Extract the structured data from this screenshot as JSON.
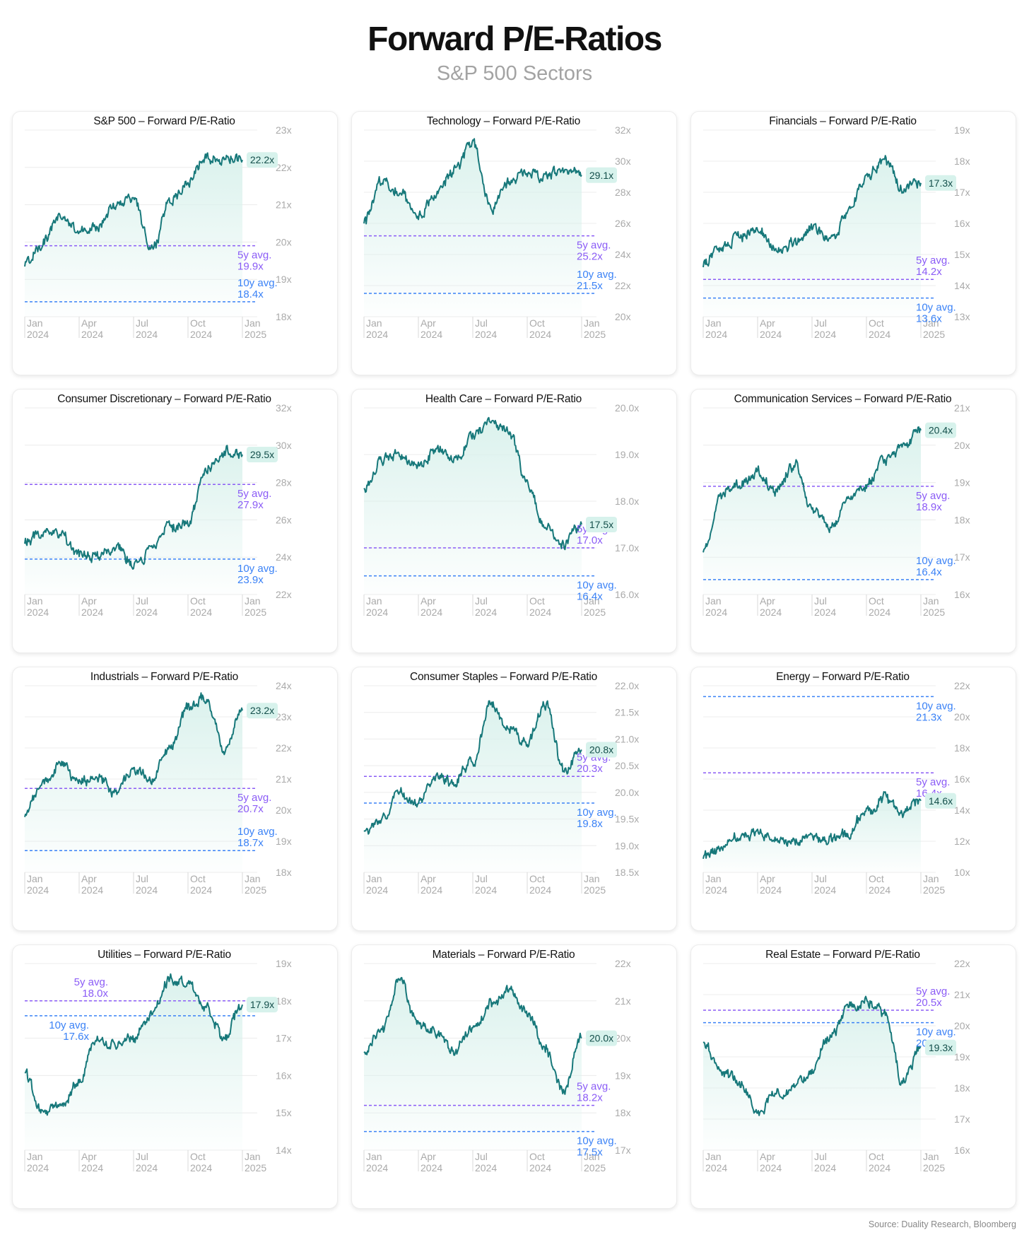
{
  "page": {
    "title": "Forward P/E-Ratios",
    "subtitle": "S&P 500 Sectors",
    "source": "Source: Duality Research, Bloomberg"
  },
  "colors": {
    "line": "#17787a",
    "fill": "#d9f1ec",
    "label_bg": "#d7f2ec",
    "avg5": "#8b5cf6",
    "avg10": "#3b82f6",
    "axis_text": "#aaaaaa",
    "grid": "#ececec"
  },
  "x_tick_labels": [
    [
      "Jan",
      "2024"
    ],
    [
      "Apr",
      "2024"
    ],
    [
      "Jul",
      "2024"
    ],
    [
      "Oct",
      "2024"
    ],
    [
      "Jan",
      "2025"
    ]
  ],
  "chart_data": [
    {
      "type": "line",
      "title": "S&P 500 – Forward P/E-Ratio",
      "x": [
        "Jan 2024",
        "Feb 2024",
        "Mar 2024",
        "Apr 2024",
        "May 2024",
        "Jun 2024",
        "Jul 2024",
        "Aug 2024",
        "Sep 2024",
        "Oct 2024",
        "Nov 2024",
        "Dec 2024",
        "Jan 2025"
      ],
      "series": [
        {
          "values": [
            19.4,
            20.0,
            20.7,
            20.3,
            20.4,
            21.0,
            21.2,
            19.8,
            21.1,
            21.6,
            22.3,
            22.2,
            22.2
          ]
        }
      ],
      "last_label": "22.2x",
      "avg5": {
        "label": "5y avg.",
        "value": 19.9,
        "value_label": "19.9x"
      },
      "avg10": {
        "label": "10y avg.",
        "value": 18.4,
        "value_label": "18.4x"
      },
      "y_ticks": [
        "23x",
        "22x",
        "21x",
        "20x",
        "19x",
        "18x"
      ],
      "ylim": [
        18,
        23
      ]
    },
    {
      "type": "line",
      "title": "Technology – Forward P/E-Ratio",
      "x": [
        "Jan 2024",
        "Feb 2024",
        "Mar 2024",
        "Apr 2024",
        "May 2024",
        "Jun 2024",
        "Jul 2024",
        "Aug 2024",
        "Sep 2024",
        "Oct 2024",
        "Nov 2024",
        "Dec 2024",
        "Jan 2025"
      ],
      "series": [
        {
          "values": [
            26.0,
            28.8,
            28.0,
            26.5,
            27.8,
            29.5,
            31.2,
            27.0,
            28.6,
            29.3,
            29.0,
            29.5,
            29.1
          ]
        }
      ],
      "last_label": "29.1x",
      "avg5": {
        "label": "5y avg.",
        "value": 25.2,
        "value_label": "25.2x"
      },
      "avg10": {
        "label": "10y avg.",
        "value": 21.5,
        "value_label": "21.5x"
      },
      "y_ticks": [
        "32x",
        "30x",
        "28x",
        "26x",
        "24x",
        "22x",
        "20x"
      ],
      "ylim": [
        20,
        32
      ]
    },
    {
      "type": "line",
      "title": "Financials – Forward P/E-Ratio",
      "x": [
        "Jan 2024",
        "Feb 2024",
        "Mar 2024",
        "Apr 2024",
        "May 2024",
        "Jun 2024",
        "Jul 2024",
        "Aug 2024",
        "Sep 2024",
        "Oct 2024",
        "Nov 2024",
        "Dec 2024",
        "Jan 2025"
      ],
      "series": [
        {
          "values": [
            14.7,
            15.2,
            15.5,
            15.8,
            15.2,
            15.4,
            15.8,
            15.5,
            16.4,
            17.5,
            18.0,
            17.1,
            17.3
          ]
        }
      ],
      "last_label": "17.3x",
      "avg5": {
        "label": "5y avg.",
        "value": 14.2,
        "value_label": "14.2x"
      },
      "avg10": {
        "label": "10y avg.",
        "value": 13.6,
        "value_label": "13.6x"
      },
      "y_ticks": [
        "19x",
        "18x",
        "17x",
        "16x",
        "15x",
        "14x",
        "13x"
      ],
      "ylim": [
        13,
        19
      ]
    },
    {
      "type": "line",
      "title": "Consumer Discretionary – Forward P/E-Ratio",
      "x": [
        "Jan 2024",
        "Feb 2024",
        "Mar 2024",
        "Apr 2024",
        "May 2024",
        "Jun 2024",
        "Jul 2024",
        "Aug 2024",
        "Sep 2024",
        "Oct 2024",
        "Nov 2024",
        "Dec 2024",
        "Jan 2025"
      ],
      "series": [
        {
          "values": [
            24.8,
            25.3,
            25.2,
            24.2,
            24.0,
            24.6,
            23.5,
            24.4,
            25.6,
            25.8,
            28.8,
            29.6,
            29.5
          ]
        }
      ],
      "last_label": "29.5x",
      "avg5": {
        "label": "5y avg.",
        "value": 27.9,
        "value_label": "27.9x"
      },
      "avg10": {
        "label": "10y avg.",
        "value": 23.9,
        "value_label": "23.9x"
      },
      "y_ticks": [
        "32x",
        "30x",
        "28x",
        "26x",
        "24x",
        "22x"
      ],
      "ylim": [
        22,
        32
      ]
    },
    {
      "type": "line",
      "title": "Health Care – Forward P/E-Ratio",
      "x": [
        "Jan 2024",
        "Feb 2024",
        "Mar 2024",
        "Apr 2024",
        "May 2024",
        "Jun 2024",
        "Jul 2024",
        "Aug 2024",
        "Sep 2024",
        "Oct 2024",
        "Nov 2024",
        "Dec 2024",
        "Jan 2025"
      ],
      "series": [
        {
          "values": [
            18.2,
            18.9,
            19.0,
            18.7,
            19.1,
            18.9,
            19.4,
            19.7,
            19.5,
            18.4,
            17.4,
            17.1,
            17.5
          ]
        }
      ],
      "last_label": "17.5x",
      "avg5": {
        "label": "5y avg.",
        "value": 17.0,
        "value_label": "17.0x"
      },
      "avg10": {
        "label": "10y avg.",
        "value": 16.4,
        "value_label": "16.4x"
      },
      "y_ticks": [
        "20.0x",
        "19.0x",
        "18.0x",
        "17.0x",
        "16.0x"
      ],
      "ylim": [
        16,
        20
      ]
    },
    {
      "type": "line",
      "title": "Communication Services – Forward P/E-Ratio",
      "x": [
        "Jan 2024",
        "Feb 2024",
        "Mar 2024",
        "Apr 2024",
        "May 2024",
        "Jun 2024",
        "Jul 2024",
        "Aug 2024",
        "Sep 2024",
        "Oct 2024",
        "Nov 2024",
        "Dec 2024",
        "Jan 2025"
      ],
      "series": [
        {
          "values": [
            17.2,
            18.7,
            18.9,
            19.3,
            18.8,
            19.5,
            18.3,
            17.8,
            18.5,
            18.9,
            19.6,
            20.0,
            20.4
          ]
        }
      ],
      "last_label": "20.4x",
      "avg5": {
        "label": "5y avg.",
        "value": 18.9,
        "value_label": "18.9x"
      },
      "avg10": {
        "label": "10y avg.",
        "value": 16.4,
        "value_label": "16.4x"
      },
      "y_ticks": [
        "21x",
        "20x",
        "19x",
        "18x",
        "17x",
        "16x"
      ],
      "ylim": [
        16,
        21
      ]
    },
    {
      "type": "line",
      "title": "Industrials – Forward P/E-Ratio",
      "x": [
        "Jan 2024",
        "Feb 2024",
        "Mar 2024",
        "Apr 2024",
        "May 2024",
        "Jun 2024",
        "Jul 2024",
        "Aug 2024",
        "Sep 2024",
        "Oct 2024",
        "Nov 2024",
        "Dec 2024",
        "Jan 2025"
      ],
      "series": [
        {
          "values": [
            19.8,
            20.9,
            21.5,
            20.9,
            21.1,
            20.6,
            21.3,
            21.0,
            22.0,
            23.3,
            23.6,
            21.9,
            23.2
          ]
        }
      ],
      "last_label": "23.2x",
      "avg5": {
        "label": "5y avg.",
        "value": 20.7,
        "value_label": "20.7x"
      },
      "avg10": {
        "label": "10y avg.",
        "value": 18.7,
        "value_label": "18.7x"
      },
      "y_ticks": [
        "24x",
        "23x",
        "22x",
        "21x",
        "20x",
        "19x",
        "18x"
      ],
      "ylim": [
        18,
        24
      ]
    },
    {
      "type": "line",
      "title": "Consumer Staples – Forward P/E-Ratio",
      "x": [
        "Jan 2024",
        "Feb 2024",
        "Mar 2024",
        "Apr 2024",
        "May 2024",
        "Jun 2024",
        "Jul 2024",
        "Aug 2024",
        "Sep 2024",
        "Oct 2024",
        "Nov 2024",
        "Dec 2024",
        "Jan 2025"
      ],
      "series": [
        {
          "values": [
            19.2,
            19.5,
            20.0,
            19.8,
            20.3,
            20.2,
            20.6,
            21.7,
            21.2,
            20.9,
            21.7,
            20.4,
            20.8
          ]
        }
      ],
      "last_label": "20.8x",
      "avg5": {
        "label": "5y avg.",
        "value": 20.3,
        "value_label": "20.3x"
      },
      "avg10": {
        "label": "10y avg.",
        "value": 19.8,
        "value_label": "19.8x"
      },
      "y_ticks": [
        "22.0x",
        "21.5x",
        "21.0x",
        "20.5x",
        "20.0x",
        "19.5x",
        "19.0x",
        "18.5x"
      ],
      "ylim": [
        18.5,
        22
      ]
    },
    {
      "type": "line",
      "title": "Energy – Forward P/E-Ratio",
      "x": [
        "Jan 2024",
        "Feb 2024",
        "Mar 2024",
        "Apr 2024",
        "May 2024",
        "Jun 2024",
        "Jul 2024",
        "Aug 2024",
        "Sep 2024",
        "Oct 2024",
        "Nov 2024",
        "Dec 2024",
        "Jan 2025"
      ],
      "series": [
        {
          "values": [
            11.0,
            11.6,
            12.3,
            12.6,
            12.1,
            12.0,
            12.3,
            12.1,
            12.5,
            13.9,
            14.8,
            13.8,
            14.6
          ]
        }
      ],
      "last_label": "14.6x",
      "avg5": {
        "label": "5y avg.",
        "value": 16.4,
        "value_label": "16.4x"
      },
      "avg10": {
        "label": "10y avg.",
        "value": 21.3,
        "value_label": "21.3x"
      },
      "y_ticks": [
        "22x",
        "20x",
        "18x",
        "16x",
        "14x",
        "12x",
        "10x"
      ],
      "ylim": [
        10,
        22
      ]
    },
    {
      "type": "line",
      "title": "Utilities – Forward P/E-Ratio",
      "x": [
        "Jan 2024",
        "Feb 2024",
        "Mar 2024",
        "Apr 2024",
        "May 2024",
        "Jun 2024",
        "Jul 2024",
        "Aug 2024",
        "Sep 2024",
        "Oct 2024",
        "Nov 2024",
        "Dec 2024",
        "Jan 2025"
      ],
      "series": [
        {
          "values": [
            16.0,
            15.0,
            15.2,
            15.8,
            17.1,
            16.8,
            17.0,
            17.6,
            18.6,
            18.5,
            17.8,
            17.0,
            17.9
          ]
        }
      ],
      "last_label": "17.9x",
      "avg5": {
        "label": "5y avg.",
        "value": 18.0,
        "value_label": "18.0x"
      },
      "avg10": {
        "label": "10y avg.",
        "value": 17.6,
        "value_label": "17.6x"
      },
      "y_ticks": [
        "19x",
        "18x",
        "17x",
        "16x",
        "15x",
        "14x"
      ],
      "ylim": [
        14,
        19
      ]
    },
    {
      "type": "line",
      "title": "Materials – Forward P/E-Ratio",
      "x": [
        "Jan 2024",
        "Feb 2024",
        "Mar 2024",
        "Apr 2024",
        "May 2024",
        "Jun 2024",
        "Jul 2024",
        "Aug 2024",
        "Sep 2024",
        "Oct 2024",
        "Nov 2024",
        "Dec 2024",
        "Jan 2025"
      ],
      "series": [
        {
          "values": [
            19.7,
            20.2,
            21.6,
            20.4,
            20.1,
            19.7,
            20.3,
            20.9,
            21.3,
            20.7,
            19.7,
            18.6,
            20.0
          ]
        }
      ],
      "last_label": "20.0x",
      "avg5": {
        "label": "5y avg.",
        "value": 18.2,
        "value_label": "18.2x"
      },
      "avg10": {
        "label": "10y avg.",
        "value": 17.5,
        "value_label": "17.5x"
      },
      "y_ticks": [
        "22x",
        "21x",
        "20x",
        "19x",
        "18x",
        "17x"
      ],
      "ylim": [
        17,
        22
      ]
    },
    {
      "type": "line",
      "title": "Real Estate – Forward P/E-Ratio",
      "x": [
        "Jan 2024",
        "Feb 2024",
        "Mar 2024",
        "Apr 2024",
        "May 2024",
        "Jun 2024",
        "Jul 2024",
        "Aug 2024",
        "Sep 2024",
        "Oct 2024",
        "Nov 2024",
        "Dec 2024",
        "Jan 2025"
      ],
      "series": [
        {
          "values": [
            19.5,
            18.5,
            18.2,
            17.2,
            17.8,
            18.0,
            18.6,
            19.6,
            20.6,
            20.8,
            20.4,
            18.2,
            19.3
          ]
        }
      ],
      "last_label": "19.3x",
      "avg5": {
        "label": "5y avg.",
        "value": 20.5,
        "value_label": "20.5x"
      },
      "avg10": {
        "label": "10y avg.",
        "value": 20.1,
        "value_label": "20.1x"
      },
      "y_ticks": [
        "22x",
        "21x",
        "20x",
        "19x",
        "18x",
        "17x",
        "16x"
      ],
      "ylim": [
        16,
        22
      ]
    }
  ]
}
